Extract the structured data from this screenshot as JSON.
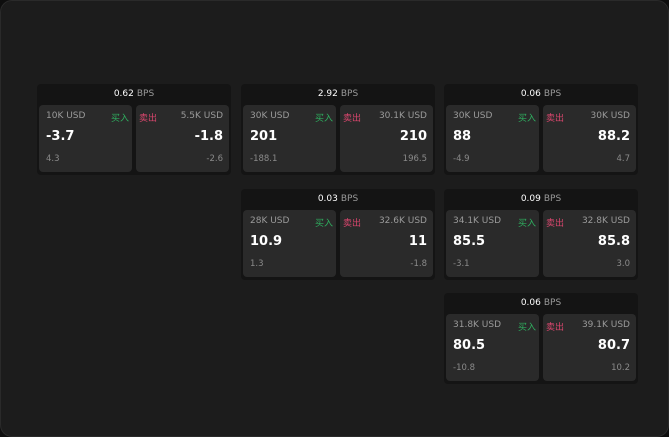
{
  "buy_label": "买入",
  "sell_label": "卖出",
  "unit": "BPS",
  "colors": {
    "buy": "#2fae5f",
    "sell": "#d9466d"
  },
  "cards": [
    {
      "spread": "0.62",
      "buy": {
        "size": "10K USD",
        "price": "-3.7",
        "change": "4.3"
      },
      "sell": {
        "size": "5.5K USD",
        "price": "-1.8",
        "change": "-2.6"
      }
    },
    {
      "spread": "2.92",
      "buy": {
        "size": "30K USD",
        "price": "201",
        "change": "-188.1"
      },
      "sell": {
        "size": "30.1K USD",
        "price": "210",
        "change": "196.5"
      }
    },
    {
      "spread": "0.06",
      "buy": {
        "size": "30K USD",
        "price": "88",
        "change": "-4.9"
      },
      "sell": {
        "size": "30K USD",
        "price": "88.2",
        "change": "4.7"
      }
    },
    {
      "spread": "0.03",
      "buy": {
        "size": "28K USD",
        "price": "10.9",
        "change": "1.3"
      },
      "sell": {
        "size": "32.6K USD",
        "price": "11",
        "change": "-1.8"
      }
    },
    {
      "spread": "0.09",
      "buy": {
        "size": "34.1K USD",
        "price": "85.5",
        "change": "-3.1"
      },
      "sell": {
        "size": "32.8K USD",
        "price": "85.8",
        "change": "3.0"
      }
    },
    {
      "spread": "0.06",
      "buy": {
        "size": "31.8K USD",
        "price": "80.5",
        "change": "-10.8"
      },
      "sell": {
        "size": "39.1K USD",
        "price": "80.7",
        "change": "10.2"
      }
    }
  ]
}
